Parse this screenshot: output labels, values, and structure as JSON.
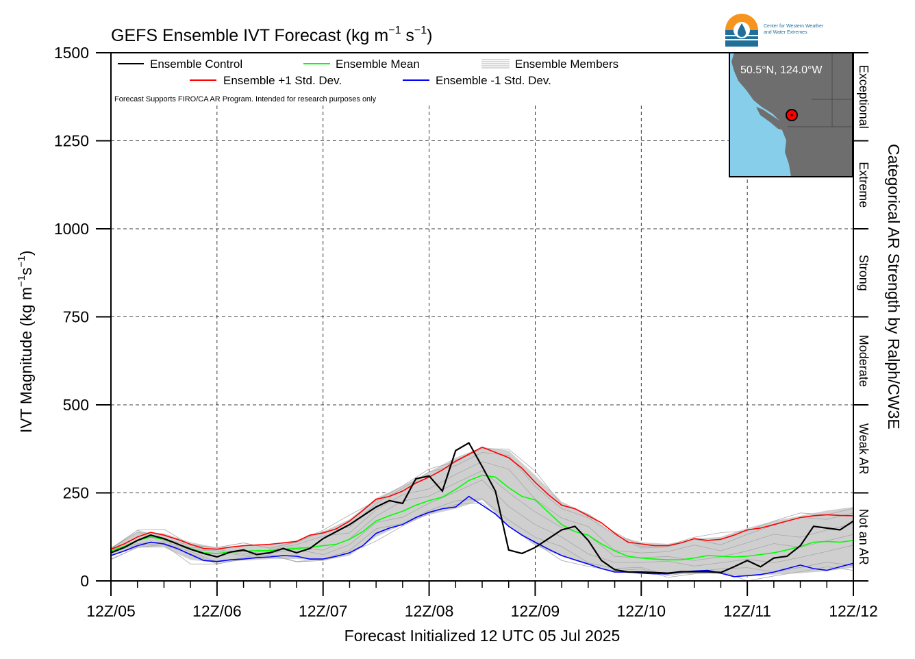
{
  "chart_data": {
    "type": "line",
    "title_main": "GEFS Ensemble IVT Forecast (kg m",
    "title_exp1": "−1",
    "title_mid": " s",
    "title_exp2": "−1",
    "title_end": ")",
    "ylabel_main": "IVT Magnitude (kg m",
    "ylabel_exp1": "−1",
    "ylabel_mid": "s",
    "ylabel_exp2": "−1",
    "ylabel_end": ")",
    "xlabel": "Forecast Initialized 12 UTC 05 Jul 2025",
    "right_label": "Categorical AR Strength by Ralph/CW3E",
    "ylim": [
      0,
      1500
    ],
    "xlim": [
      0,
      7
    ],
    "x_unit_note": "",
    "y_ticks": [
      0,
      250,
      500,
      750,
      1000,
      1250,
      1500
    ],
    "y_tick_labels": [
      "0",
      "250",
      "500",
      "750",
      "1000",
      "1250",
      "1500"
    ],
    "x_ticks": [
      0,
      1,
      2,
      3,
      4,
      5,
      6,
      7
    ],
    "x_tick_labels": [
      "12Z/05",
      "12Z/06",
      "12Z/07",
      "12Z/08",
      "12Z/09",
      "12Z/10",
      "12Z/11",
      "12Z/12"
    ],
    "categories_right": [
      {
        "label": "Not an AR",
        "range": [
          0,
          250
        ]
      },
      {
        "label": "Weak AR",
        "range": [
          250,
          500
        ]
      },
      {
        "label": "Moderate",
        "range": [
          500,
          750
        ]
      },
      {
        "label": "Strong",
        "range": [
          750,
          1000
        ]
      },
      {
        "label": "Extreme",
        "range": [
          1000,
          1250
        ]
      },
      {
        "label": "Exceptional",
        "range": [
          1250,
          1500
        ]
      }
    ],
    "legend": [
      {
        "label": "Ensemble Control",
        "color": "#000000"
      },
      {
        "label": "Ensemble Mean",
        "color": "#00ff00"
      },
      {
        "label": "Ensemble Members",
        "color": "#b0b0b0"
      },
      {
        "label": "Ensemble +1 Std. Dev.",
        "color": "#ff0000"
      },
      {
        "label": "Ensemble -1 Std. Dev.",
        "color": "#0000ff"
      }
    ],
    "note": "Forecast Supports FIRO/CA AR Program. Intended for research purposes only",
    "logo_text_line1": "Center for Western Weather",
    "logo_text_line2": "and Water Extremes",
    "inset_label": "50.5°N, 124.0°W",
    "series": [
      {
        "name": "Ensemble Control",
        "color": "#000000",
        "x": [
          0,
          0.125,
          0.25,
          0.375,
          0.5,
          0.625,
          0.75,
          0.875,
          1,
          1.125,
          1.25,
          1.375,
          1.5,
          1.625,
          1.75,
          1.875,
          2,
          2.125,
          2.25,
          2.375,
          2.5,
          2.625,
          2.75,
          2.875,
          3,
          3.125,
          3.25,
          3.375,
          3.5,
          3.625,
          3.75,
          3.875,
          4,
          4.125,
          4.25,
          4.375,
          4.5,
          4.625,
          4.75,
          4.875,
          5,
          5.125,
          5.25,
          5.375,
          5.5,
          5.625,
          5.75,
          5.875,
          6,
          6.125,
          6.25,
          6.375,
          6.5,
          6.625,
          6.75,
          6.875,
          7
        ],
        "y": [
          80,
          95,
          115,
          130,
          120,
          105,
          90,
          78,
          68,
          82,
          88,
          75,
          80,
          92,
          80,
          92,
          120,
          140,
          160,
          185,
          210,
          228,
          220,
          290,
          298,
          255,
          370,
          392,
          325,
          255,
          88,
          78,
          95,
          120,
          145,
          155,
          115,
          58,
          32,
          25,
          25,
          24,
          22,
          26,
          26,
          26,
          24,
          40,
          58,
          40,
          65,
          70,
          100,
          155,
          150,
          145,
          170
        ]
      },
      {
        "name": "Ensemble Mean",
        "color": "#00ff00",
        "x": [
          0,
          0.125,
          0.25,
          0.375,
          0.5,
          0.625,
          0.75,
          0.875,
          1,
          1.125,
          1.25,
          1.375,
          1.5,
          1.625,
          1.75,
          1.875,
          2,
          2.125,
          2.25,
          2.375,
          2.5,
          2.625,
          2.75,
          2.875,
          3,
          3.125,
          3.25,
          3.375,
          3.5,
          3.625,
          3.75,
          3.875,
          4,
          4.125,
          4.25,
          4.375,
          4.5,
          4.625,
          4.75,
          4.875,
          5,
          5.125,
          5.25,
          5.375,
          5.5,
          5.625,
          5.75,
          5.875,
          6,
          6.125,
          6.25,
          6.375,
          6.5,
          6.625,
          6.75,
          6.875,
          7
        ],
        "y": [
          85,
          98,
          115,
          125,
          118,
          105,
          92,
          80,
          78,
          82,
          84,
          86,
          86,
          90,
          92,
          95,
          100,
          104,
          118,
          140,
          170,
          185,
          198,
          215,
          228,
          238,
          260,
          285,
          300,
          295,
          265,
          240,
          230,
          195,
          160,
          140,
          130,
          105,
          85,
          70,
          65,
          62,
          60,
          60,
          65,
          72,
          70,
          68,
          70,
          75,
          80,
          88,
          98,
          110,
          112,
          110,
          115
        ]
      },
      {
        "name": "Ensemble +1 Std. Dev.",
        "color": "#ff0000",
        "x": [
          0,
          0.125,
          0.25,
          0.375,
          0.5,
          0.625,
          0.75,
          0.875,
          1,
          1.125,
          1.25,
          1.375,
          1.5,
          1.625,
          1.75,
          1.875,
          2,
          2.125,
          2.25,
          2.375,
          2.5,
          2.625,
          2.75,
          2.875,
          3,
          3.125,
          3.25,
          3.375,
          3.5,
          3.625,
          3.75,
          3.875,
          4,
          4.125,
          4.25,
          4.375,
          4.5,
          4.625,
          4.75,
          4.875,
          5,
          5.125,
          5.25,
          5.375,
          5.5,
          5.625,
          5.75,
          5.875,
          6,
          6.125,
          6.25,
          6.375,
          6.5,
          6.625,
          6.75,
          6.875,
          7
        ],
        "y": [
          90,
          105,
          125,
          138,
          130,
          118,
          104,
          92,
          90,
          96,
          100,
          102,
          104,
          108,
          112,
          130,
          136,
          148,
          170,
          200,
          232,
          240,
          255,
          278,
          295,
          315,
          340,
          360,
          380,
          365,
          350,
          320,
          280,
          245,
          215,
          205,
          185,
          165,
          135,
          110,
          105,
          100,
          100,
          108,
          120,
          115,
          118,
          130,
          145,
          150,
          160,
          170,
          180,
          185,
          188,
          186,
          185
        ]
      },
      {
        "name": "Ensemble -1 Std. Dev.",
        "color": "#0000ff",
        "x": [
          0,
          0.125,
          0.25,
          0.375,
          0.5,
          0.625,
          0.75,
          0.875,
          1,
          1.125,
          1.25,
          1.375,
          1.5,
          1.625,
          1.75,
          1.875,
          2,
          2.125,
          2.25,
          2.375,
          2.5,
          2.625,
          2.75,
          2.875,
          3,
          3.125,
          3.25,
          3.375,
          3.5,
          3.625,
          3.75,
          3.875,
          4,
          4.125,
          4.25,
          4.375,
          4.5,
          4.625,
          4.75,
          4.875,
          5,
          5.125,
          5.25,
          5.375,
          5.5,
          5.625,
          5.75,
          5.875,
          6,
          6.125,
          6.25,
          6.375,
          6.5,
          6.625,
          6.75,
          6.875,
          7
        ],
        "y": [
          72,
          85,
          100,
          110,
          105,
          92,
          75,
          58,
          55,
          60,
          62,
          66,
          68,
          72,
          70,
          62,
          62,
          70,
          80,
          100,
          135,
          150,
          160,
          180,
          195,
          205,
          210,
          240,
          215,
          190,
          155,
          130,
          110,
          90,
          72,
          60,
          48,
          35,
          25,
          25,
          22,
          20,
          20,
          25,
          28,
          30,
          22,
          12,
          15,
          18,
          25,
          35,
          45,
          35,
          30,
          40,
          50
        ]
      }
    ],
    "members_band": {
      "name": "Ensemble Members",
      "x": [
        0,
        0.25,
        0.5,
        0.75,
        1,
        1.25,
        1.5,
        1.75,
        2,
        2.25,
        2.5,
        2.75,
        3,
        3.25,
        3.5,
        3.75,
        4,
        4.25,
        4.5,
        4.75,
        5,
        5.25,
        5.5,
        5.75,
        6,
        6.25,
        6.5,
        6.75,
        7
      ],
      "upper": [
        95,
        140,
        135,
        110,
        95,
        100,
        105,
        115,
        140,
        175,
        235,
        270,
        310,
        350,
        380,
        370,
        300,
        225,
        190,
        130,
        110,
        105,
        120,
        125,
        150,
        170,
        185,
        200,
        210
      ],
      "lower": [
        70,
        95,
        95,
        60,
        52,
        58,
        62,
        62,
        58,
        72,
        125,
        160,
        188,
        205,
        230,
        155,
        100,
        70,
        45,
        25,
        22,
        18,
        20,
        20,
        12,
        18,
        22,
        28,
        38
      ]
    }
  }
}
